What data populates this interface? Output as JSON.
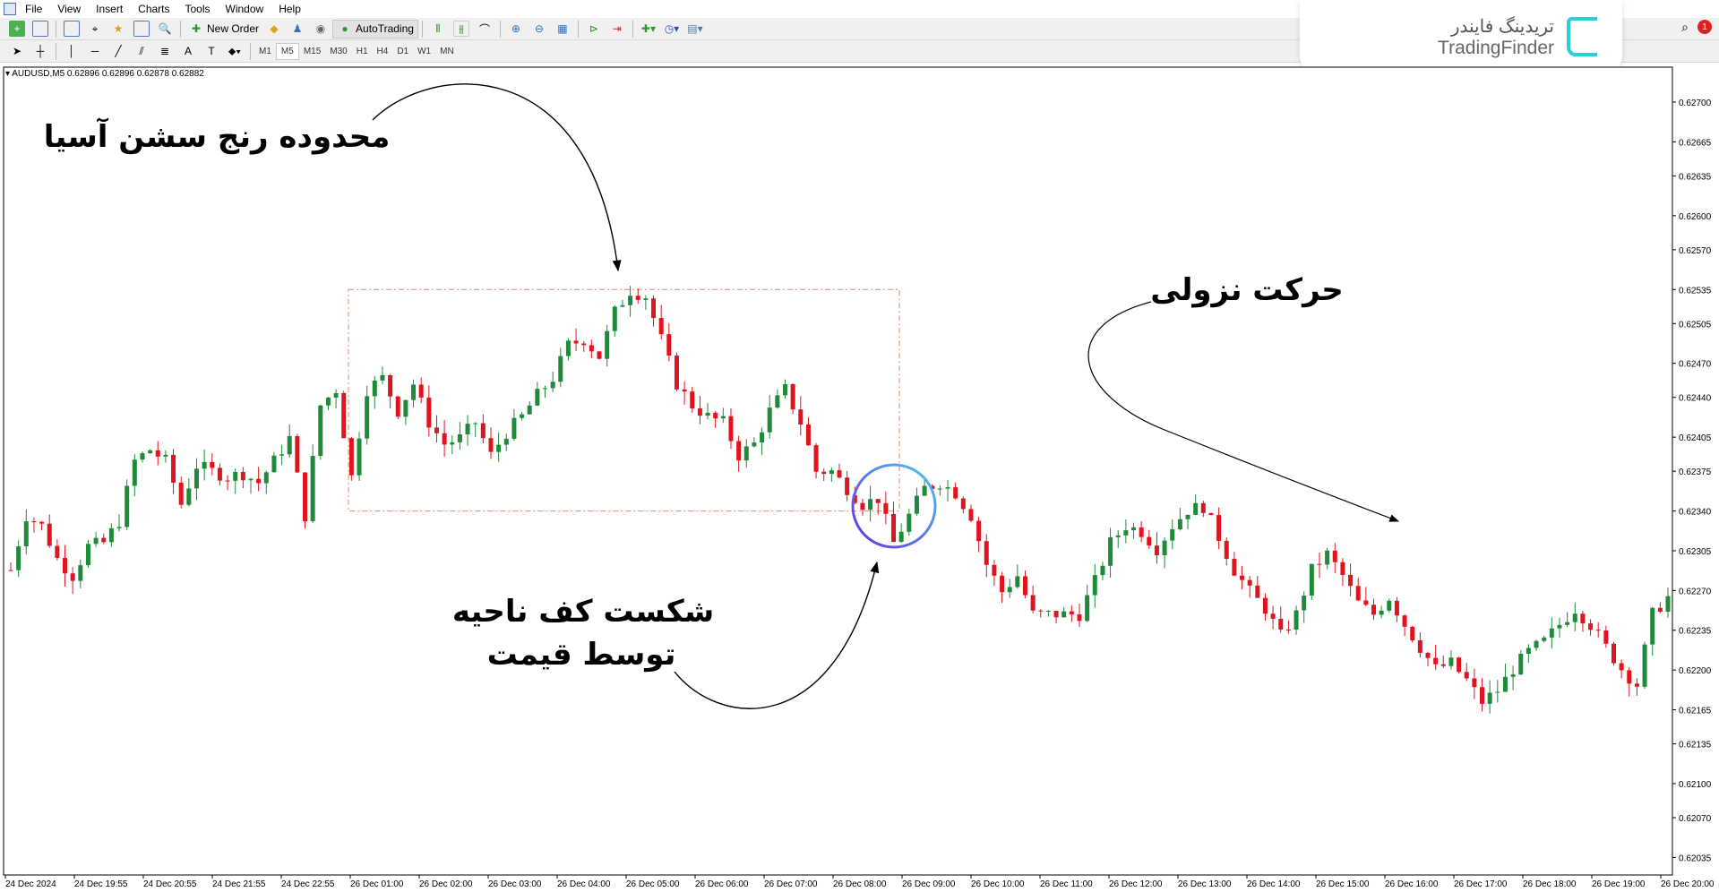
{
  "menu": [
    "File",
    "View",
    "Insert",
    "Charts",
    "Tools",
    "Window",
    "Help"
  ],
  "toolbar": {
    "new_order": "New Order",
    "autotrading": "AutoTrading",
    "timeframes": [
      "M1",
      "M5",
      "M15",
      "M30",
      "H1",
      "H4",
      "D1",
      "W1",
      "MN"
    ],
    "active_timeframe": "M5"
  },
  "logo": {
    "fa": "تریدینگ فایندر",
    "en": "TradingFinder"
  },
  "notification_count": "1",
  "chart": {
    "title": "AUDUSD,M5  0.62896 0.62896 0.62878 0.62882"
  },
  "annotations": {
    "asia_range": "محدوده رنج سشن آسیا",
    "downtrend": "حرکت نزولی",
    "break_line1": "شکست کف ناحیه",
    "break_line2": "توسط قیمت"
  },
  "colors": {
    "bull": "#1f8a3a",
    "bear": "#e0141e",
    "range_box": "#e08a6a",
    "circle_start": "#6a2ee0",
    "circle_end": "#4ec8f0"
  },
  "chart_data": {
    "type": "candlestick",
    "symbol": "AUDUSD",
    "timeframe": "M5",
    "ylim": [
      0.62035,
      0.627
    ],
    "y_ticks": [
      "0.62700",
      "0.62665",
      "0.62635",
      "0.62600",
      "0.62570",
      "0.62535",
      "0.62505",
      "0.62470",
      "0.62440",
      "0.62405",
      "0.62375",
      "0.62340",
      "0.62305",
      "0.62270",
      "0.62235",
      "0.62200",
      "0.62165",
      "0.62135",
      "0.62100",
      "0.62070",
      "0.62035"
    ],
    "x_ticks": [
      "24 Dec 2024",
      "24 Dec 19:55",
      "24 Dec 20:55",
      "24 Dec 21:55",
      "24 Dec 22:55",
      "26 Dec 01:00",
      "26 Dec 02:00",
      "26 Dec 03:00",
      "26 Dec 04:00",
      "26 Dec 05:00",
      "26 Dec 06:00",
      "26 Dec 07:00",
      "26 Dec 08:00",
      "26 Dec 09:00",
      "26 Dec 10:00",
      "26 Dec 11:00",
      "26 Dec 12:00",
      "26 Dec 13:00",
      "26 Dec 14:00",
      "26 Dec 15:00",
      "26 Dec 16:00",
      "26 Dec 17:00",
      "26 Dec 18:00",
      "26 Dec 19:00",
      "26 Dec 20:00"
    ],
    "close_path": [
      0.62288,
      0.62336,
      0.62327,
      0.62298,
      0.62283,
      0.62309,
      0.62312,
      0.62331,
      0.62384,
      0.62394,
      0.62384,
      0.62346,
      0.6238,
      0.62375,
      0.6237,
      0.62373,
      0.62365,
      0.62384,
      0.62404,
      0.62336,
      0.62433,
      0.62447,
      0.6237,
      0.62447,
      0.62457,
      0.62428,
      0.62452,
      0.62418,
      0.62399,
      0.62404,
      0.62418,
      0.62389,
      0.62409,
      0.62423,
      0.62442,
      0.62457,
      0.62486,
      0.62491,
      0.62476,
      0.62515,
      0.62534,
      0.62529,
      0.62491,
      0.62452,
      0.62433,
      0.62423,
      0.62418,
      0.62389,
      0.62399,
      0.62428,
      0.62447,
      0.62418,
      0.62375,
      0.62375,
      0.6236,
      0.62346,
      0.62351,
      0.62312,
      0.62336,
      0.6236,
      0.62365,
      0.62356,
      0.62336,
      0.62293,
      0.62269,
      0.62283,
      0.62249,
      0.62249,
      0.62249,
      0.62249,
      0.62278,
      0.62312,
      0.62327,
      0.62322,
      0.62307,
      0.62327,
      0.62341,
      0.62344,
      0.62317,
      0.62288,
      0.62269,
      0.62254,
      0.6223,
      0.62249,
      0.62288,
      0.62302,
      0.62283,
      0.62259,
      0.62249,
      0.62264,
      0.6224,
      0.6222,
      0.62201,
      0.62206,
      0.62191,
      0.62172,
      0.62182,
      0.62201,
      0.62216,
      0.62225,
      0.6224,
      0.62254,
      0.6224,
      0.6222,
      0.62201,
      0.62187,
      0.62249,
      0.62264
    ],
    "asia_range_box": {
      "high": 0.62535,
      "low": 0.6234
    }
  }
}
